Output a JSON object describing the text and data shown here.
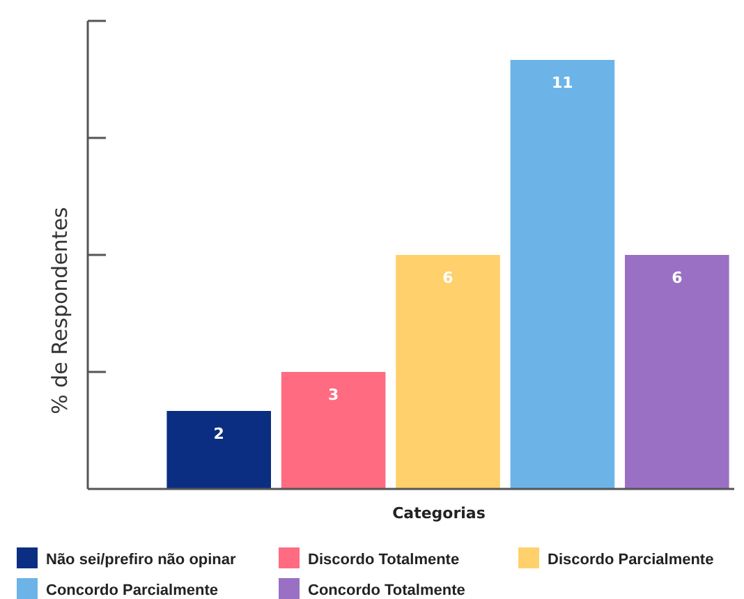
{
  "chart_data": {
    "type": "bar",
    "xlabel": "Categorias",
    "ylabel": "% de Respondentes",
    "categories": [
      null,
      null,
      null,
      null,
      null
    ],
    "stacked": true,
    "series": [
      {
        "name": "Não sei/prefiro não opinar",
        "color": "#0b2e82",
        "values": [
          2,
          null,
          null,
          null,
          null
        ]
      },
      {
        "name": "Discordo Totalmente",
        "color": "#ff6b81",
        "values": [
          null,
          3,
          null,
          null,
          null
        ]
      },
      {
        "name": "Discordo Parcialmente",
        "color": "#ffd06b",
        "values": [
          null,
          null,
          6,
          null,
          null
        ]
      },
      {
        "name": "Concordo Parcialmente",
        "color": "#6cb4e8",
        "values": [
          null,
          null,
          null,
          11,
          null
        ]
      },
      {
        "name": "Concordo Totalmente",
        "color": "#9a70c4",
        "values": [
          null,
          null,
          null,
          null,
          6
        ]
      }
    ],
    "ylim": [
      0,
      12
    ],
    "yticks": [
      {
        "value": 3,
        "label": null
      },
      {
        "value": 6,
        "label": null
      },
      {
        "value": 9,
        "label": null
      },
      {
        "value": 12,
        "label": null
      }
    ],
    "data_labels": true,
    "legend": "bottom"
  }
}
